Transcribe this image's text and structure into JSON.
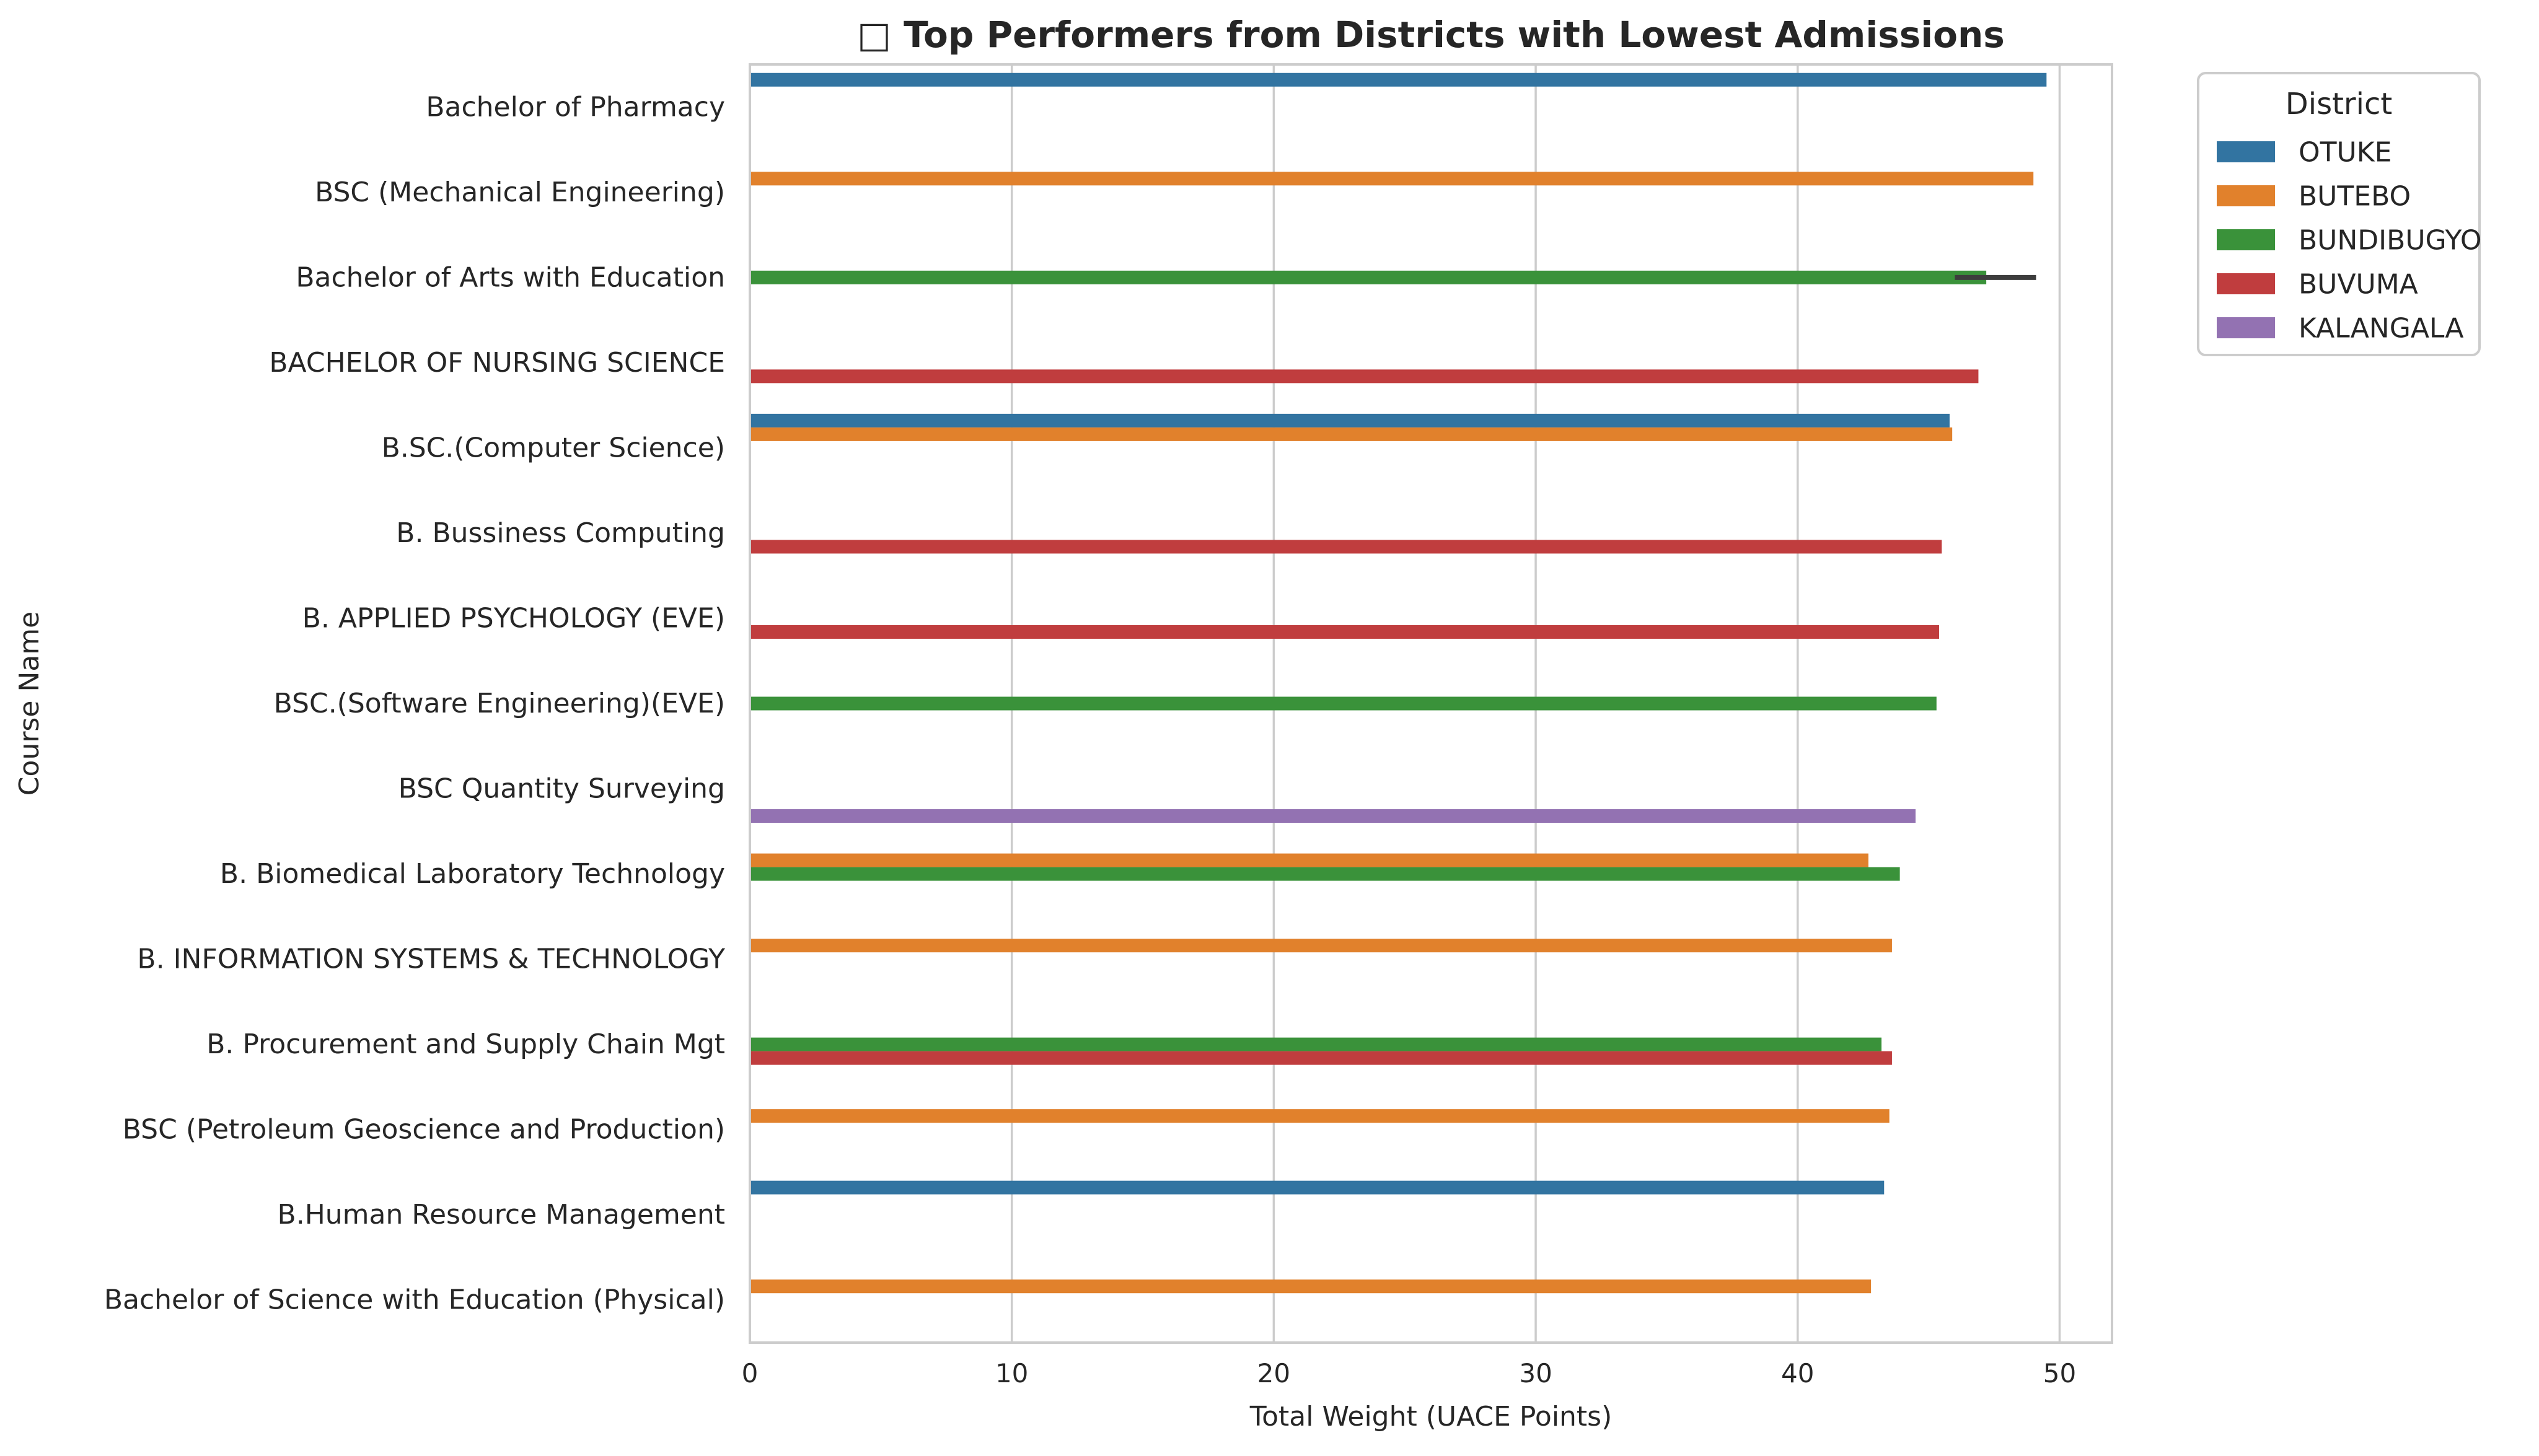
{
  "chart_data": {
    "type": "bar",
    "orientation": "horizontal",
    "title": "□ Top Performers from Districts with Lowest Admissions",
    "xlabel": "Total Weight (UACE Points)",
    "ylabel": "Course Name",
    "xlim": [
      0,
      52
    ],
    "xticks": [
      0,
      10,
      20,
      30,
      40,
      50
    ],
    "grid": "vertical",
    "legend": {
      "title": "District",
      "placement": "outside-top-right"
    },
    "categories": [
      "Bachelor of Pharmacy",
      "BSC (Mechanical Engineering)",
      "Bachelor of Arts with Education",
      "BACHELOR OF NURSING SCIENCE",
      "B.SC.(Computer Science)",
      "B. Bussiness Computing",
      "B. APPLIED PSYCHOLOGY (EVE)",
      "BSC.(Software Engineering)(EVE)",
      "BSC Quantity Surveying",
      "B. Biomedical Laboratory Technology",
      "B. INFORMATION SYSTEMS & TECHNOLOGY",
      "B. Procurement and Supply Chain Mgt",
      "BSC (Petroleum Geoscience and Production)",
      "B.Human Resource Management",
      "Bachelor of Science with Education (Physical)"
    ],
    "series": [
      {
        "name": "OTUKE",
        "color": "#3274a1",
        "values": [
          49.5,
          null,
          null,
          null,
          45.8,
          null,
          null,
          null,
          null,
          null,
          null,
          null,
          null,
          43.3,
          null
        ]
      },
      {
        "name": "BUTEBO",
        "color": "#e1812c",
        "values": [
          null,
          49.0,
          null,
          null,
          45.9,
          null,
          null,
          null,
          null,
          42.7,
          43.6,
          null,
          43.5,
          null,
          42.8
        ]
      },
      {
        "name": "BUNDIBUGYO",
        "color": "#3a923a",
        "values": [
          null,
          null,
          47.2,
          null,
          null,
          null,
          null,
          45.3,
          null,
          43.9,
          null,
          43.2,
          null,
          null,
          null
        ]
      },
      {
        "name": "BUVUMA",
        "color": "#c03d3e",
        "values": [
          null,
          null,
          null,
          46.9,
          null,
          45.5,
          45.4,
          null,
          null,
          null,
          null,
          43.6,
          null,
          null,
          null
        ]
      },
      {
        "name": "KALANGALA",
        "color": "#9372b2",
        "values": [
          null,
          null,
          null,
          null,
          null,
          null,
          null,
          null,
          44.5,
          null,
          null,
          null,
          null,
          null,
          null
        ]
      }
    ],
    "error_bars": [
      {
        "category": "Bachelor of Arts with Education",
        "series": "BUNDIBUGYO",
        "low": 46.0,
        "high": 49.1
      }
    ]
  }
}
